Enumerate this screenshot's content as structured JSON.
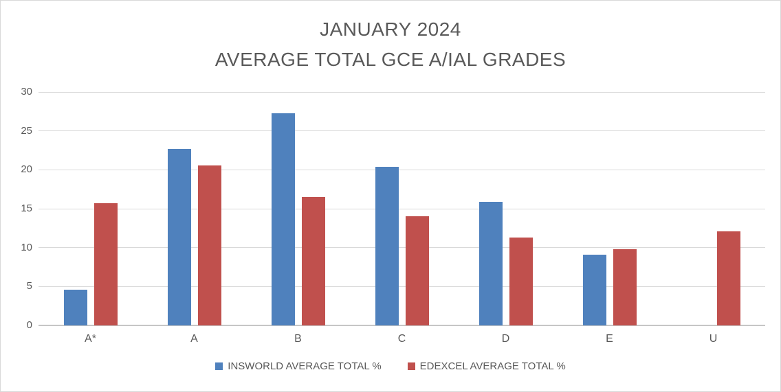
{
  "chart_data": {
    "type": "bar",
    "title_line1": "JANUARY 2024",
    "title_line2": "AVERAGE TOTAL GCE A/IAL GRADES",
    "categories": [
      "A*",
      "A",
      "B",
      "C",
      "D",
      "E",
      "U"
    ],
    "series": [
      {
        "name": "INSWORLD AVERAGE TOTAL %",
        "color": "#4F81BD",
        "values": [
          4.6,
          22.7,
          27.3,
          20.4,
          15.9,
          9.1,
          0
        ]
      },
      {
        "name": "EDEXCEL AVERAGE TOTAL %",
        "color": "#C0504D",
        "values": [
          15.7,
          20.6,
          16.5,
          14.0,
          11.3,
          9.8,
          12.1
        ]
      }
    ],
    "xlabel": "",
    "ylabel": "",
    "ylim": [
      0,
      30
    ],
    "yticks": [
      0,
      5,
      10,
      15,
      20,
      25,
      30
    ],
    "grid": "horizontal",
    "legend_position": "bottom"
  },
  "colors": {
    "series_insworld": "#4F81BD",
    "series_edexcel": "#C0504D",
    "gridline": "#D9D9D9",
    "axis_line": "#C6C6C6",
    "text": "#595959",
    "frame_border": "#D9D9D9",
    "background": "#FFFFFF"
  }
}
